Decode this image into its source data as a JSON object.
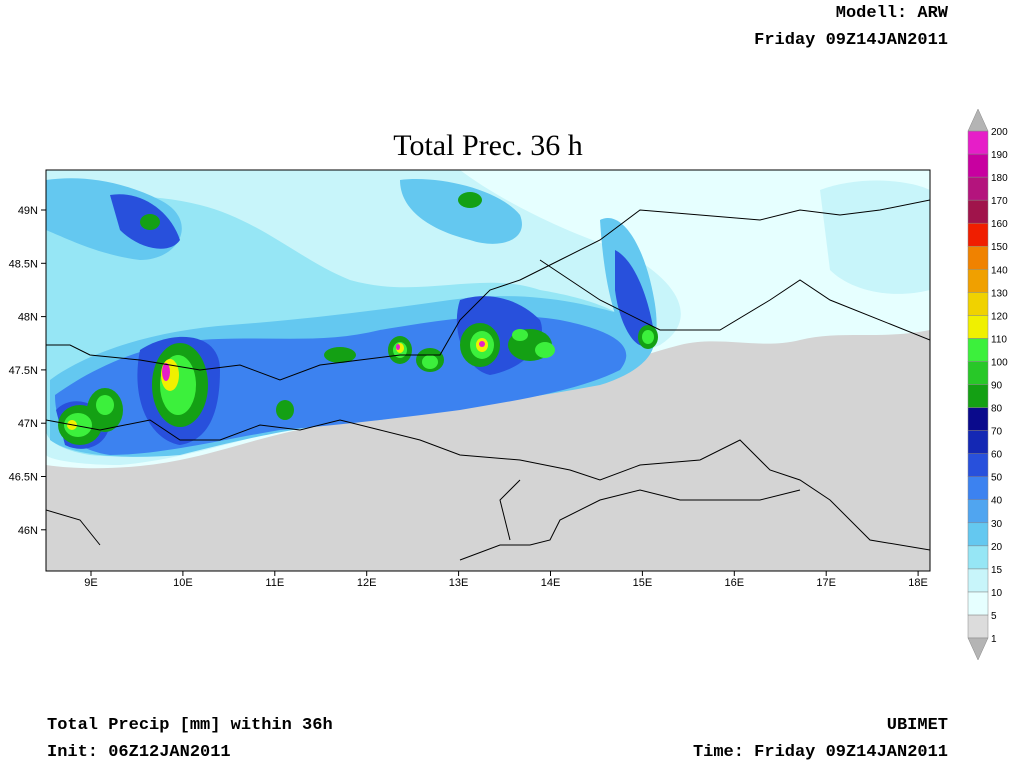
{
  "header": {
    "model": "Modell: ARW",
    "valid": "Friday 09Z14JAN2011"
  },
  "title": "Total Prec. 36 h",
  "axes": {
    "x_labels": [
      "9E",
      "10E",
      "11E",
      "12E",
      "13E",
      "14E",
      "15E",
      "16E",
      "17E",
      "18E"
    ],
    "y_labels": [
      "49N",
      "48.5N",
      "48N",
      "47.5N",
      "47N",
      "46.5N",
      "46N"
    ]
  },
  "legend": {
    "levels": [
      {
        "value": 1,
        "color": "#dcdcdc"
      },
      {
        "value": 5,
        "color": "#e6ffff"
      },
      {
        "value": 10,
        "color": "#c8f5fa"
      },
      {
        "value": 15,
        "color": "#96e6f5"
      },
      {
        "value": 20,
        "color": "#64c8f0"
      },
      {
        "value": 30,
        "color": "#50a5f0"
      },
      {
        "value": 40,
        "color": "#3c82f0"
      },
      {
        "value": 50,
        "color": "#2850dc"
      },
      {
        "value": 60,
        "color": "#1428b4"
      },
      {
        "value": 70,
        "color": "#0a0a8c"
      },
      {
        "value": 80,
        "color": "#14a014"
      },
      {
        "value": 90,
        "color": "#28c828"
      },
      {
        "value": 100,
        "color": "#3cf03c"
      },
      {
        "value": 110,
        "color": "#f0f000"
      },
      {
        "value": 120,
        "color": "#f0d200"
      },
      {
        "value": 130,
        "color": "#f0a000"
      },
      {
        "value": 140,
        "color": "#f08200"
      },
      {
        "value": 150,
        "color": "#f01e00"
      },
      {
        "value": 160,
        "color": "#a0144b"
      },
      {
        "value": 170,
        "color": "#b4147d"
      },
      {
        "value": 180,
        "color": "#c800a0"
      },
      {
        "value": 190,
        "color": "#e61ec8"
      },
      {
        "value": 200,
        "color": "#f08ce6"
      }
    ]
  },
  "footer": {
    "description": "Total Precip [mm] within 36h",
    "init": "Init: 06Z12JAN2011",
    "provider": "UBIMET",
    "time": "Time: Friday 09Z14JAN2011"
  }
}
